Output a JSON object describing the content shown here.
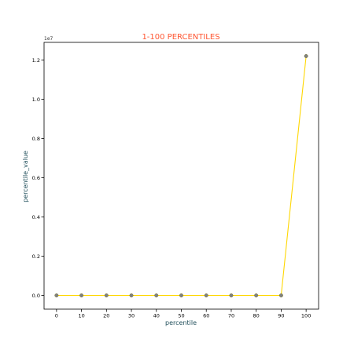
{
  "chart_data": {
    "type": "line",
    "title": "1-100 PERCENTILES",
    "xlabel": "percentile",
    "ylabel": "percentile_value",
    "y_offset_label": "1e7",
    "x": [
      0,
      10,
      20,
      30,
      40,
      50,
      60,
      70,
      80,
      90,
      100
    ],
    "y": [
      0,
      0,
      0,
      0,
      0,
      0,
      0,
      0,
      0,
      0,
      12200000
    ],
    "xlim": [
      -5,
      105
    ],
    "ylim": [
      -700000,
      12900000
    ],
    "x_ticks": [
      0,
      10,
      20,
      30,
      40,
      50,
      60,
      70,
      80,
      90,
      100
    ],
    "y_ticks": [
      0,
      2000000,
      4000000,
      6000000,
      8000000,
      10000000,
      12000000
    ],
    "x_tick_labels": [
      "0",
      "10",
      "20",
      "30",
      "40",
      "50",
      "60",
      "70",
      "80",
      "90",
      "100"
    ],
    "y_tick_labels": [
      "0.0",
      "0.2",
      "0.4",
      "0.6",
      "0.8",
      "1.0",
      "1.2"
    ],
    "grid": false,
    "colors": {
      "line": "#ffd700",
      "marker": "#808080",
      "marker_edge": "#6b6b2a",
      "title": "#ff5733",
      "axis_label": "#1f4e5a"
    }
  }
}
